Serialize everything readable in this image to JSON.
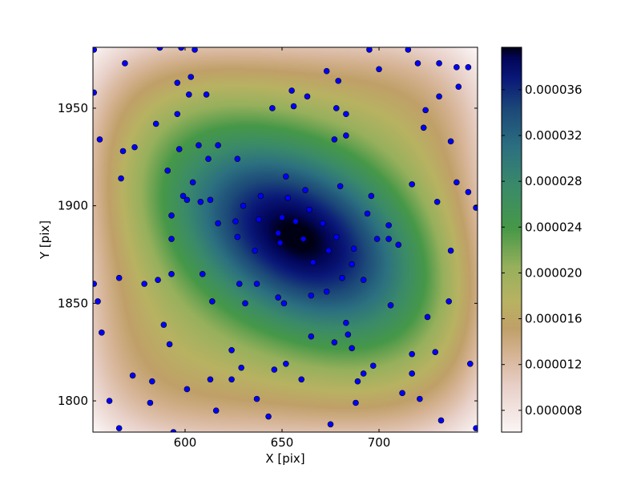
{
  "chart_data": {
    "type": "heatmap",
    "title": "",
    "xlabel": "X [pix]",
    "ylabel": "Y [pix]",
    "xlim": [
      552.5,
      750.8
    ],
    "ylim": [
      1784.0,
      1981.2
    ],
    "xticks": [
      "600",
      "650",
      "700"
    ],
    "yticks": [
      "1800",
      "1850",
      "1900",
      "1950"
    ],
    "grid": false,
    "colormap": "gist_earth_r",
    "colorbar": {
      "range": [
        6.1e-06,
        3.97e-05
      ],
      "ticks": [
        "0.000008",
        "0.000012",
        "0.000016",
        "0.000020",
        "0.000024",
        "0.000028",
        "0.000032",
        "0.000036"
      ],
      "location": "right"
    },
    "peak": {
      "x": 658,
      "y": 1884
    },
    "scatter": {
      "color": "#0000ff",
      "edge_color": "#000000",
      "points": [
        [
          553,
          1980
        ],
        [
          587,
          1981
        ],
        [
          598,
          1981
        ],
        [
          605,
          1980
        ],
        [
          569,
          1973
        ],
        [
          603,
          1966
        ],
        [
          596,
          1963
        ],
        [
          602,
          1957
        ],
        [
          611,
          1957
        ],
        [
          553,
          1958
        ],
        [
          645,
          1950
        ],
        [
          596,
          1947
        ],
        [
          585,
          1942
        ],
        [
          556,
          1934
        ],
        [
          568,
          1928
        ],
        [
          574,
          1930
        ],
        [
          597,
          1929
        ],
        [
          607,
          1931
        ],
        [
          617,
          1931
        ],
        [
          612,
          1924
        ],
        [
          627,
          1924
        ],
        [
          591,
          1918
        ],
        [
          567,
          1914
        ],
        [
          604,
          1912
        ],
        [
          652,
          1915
        ],
        [
          599,
          1905
        ],
        [
          601,
          1903
        ],
        [
          608,
          1902
        ],
        [
          613,
          1903
        ],
        [
          639,
          1905
        ],
        [
          630,
          1900
        ],
        [
          653,
          1904
        ],
        [
          593,
          1895
        ],
        [
          617,
          1891
        ],
        [
          626,
          1892
        ],
        [
          638,
          1893
        ],
        [
          650,
          1894
        ],
        [
          648,
          1886
        ],
        [
          593,
          1883
        ],
        [
          627,
          1884
        ],
        [
          695,
          1980
        ],
        [
          715,
          1980
        ],
        [
          720,
          1973
        ],
        [
          731,
          1973
        ],
        [
          740,
          1971
        ],
        [
          746,
          1971
        ],
        [
          673,
          1969
        ],
        [
          700,
          1970
        ],
        [
          679,
          1964
        ],
        [
          741,
          1961
        ],
        [
          655,
          1959
        ],
        [
          663,
          1956
        ],
        [
          731,
          1956
        ],
        [
          656,
          1951
        ],
        [
          678,
          1950
        ],
        [
          683,
          1947
        ],
        [
          724,
          1949
        ],
        [
          723,
          1940
        ],
        [
          683,
          1936
        ],
        [
          677,
          1934
        ],
        [
          737,
          1933
        ],
        [
          680,
          1910
        ],
        [
          717,
          1911
        ],
        [
          740,
          1912
        ],
        [
          662,
          1908
        ],
        [
          696,
          1905
        ],
        [
          746,
          1907
        ],
        [
          730,
          1902
        ],
        [
          750,
          1899
        ],
        [
          664,
          1898
        ],
        [
          657,
          1892
        ],
        [
          671,
          1891
        ],
        [
          694,
          1896
        ],
        [
          705,
          1890
        ],
        [
          678,
          1884
        ],
        [
          699,
          1883
        ],
        [
          705,
          1883
        ],
        [
          661,
          1883
        ],
        [
          649,
          1881
        ],
        [
          636,
          1877
        ],
        [
          553,
          1860
        ],
        [
          566,
          1863
        ],
        [
          579,
          1860
        ],
        [
          586,
          1862
        ],
        [
          593,
          1865
        ],
        [
          609,
          1865
        ],
        [
          628,
          1860
        ],
        [
          637,
          1860
        ],
        [
          555,
          1851
        ],
        [
          614,
          1851
        ],
        [
          631,
          1850
        ],
        [
          648,
          1853
        ],
        [
          651,
          1850
        ],
        [
          589,
          1839
        ],
        [
          557,
          1835
        ],
        [
          592,
          1829
        ],
        [
          624,
          1826
        ],
        [
          652,
          1819
        ],
        [
          573,
          1813
        ],
        [
          583,
          1810
        ],
        [
          613,
          1811
        ],
        [
          624,
          1811
        ],
        [
          629,
          1817
        ],
        [
          646,
          1816
        ],
        [
          561,
          1800
        ],
        [
          582,
          1799
        ],
        [
          601,
          1806
        ],
        [
          637,
          1801
        ],
        [
          616,
          1795
        ],
        [
          643,
          1792
        ],
        [
          566,
          1786
        ],
        [
          594,
          1784
        ],
        [
          710,
          1880
        ],
        [
          737,
          1877
        ],
        [
          674,
          1877
        ],
        [
          687,
          1878
        ],
        [
          666,
          1871
        ],
        [
          686,
          1870
        ],
        [
          681,
          1863
        ],
        [
          692,
          1862
        ],
        [
          665,
          1854
        ],
        [
          673,
          1856
        ],
        [
          706,
          1849
        ],
        [
          736,
          1851
        ],
        [
          725,
          1843
        ],
        [
          683,
          1840
        ],
        [
          684,
          1834
        ],
        [
          665,
          1833
        ],
        [
          677,
          1830
        ],
        [
          686,
          1827
        ],
        [
          717,
          1824
        ],
        [
          729,
          1825
        ],
        [
          747,
          1819
        ],
        [
          697,
          1818
        ],
        [
          692,
          1814
        ],
        [
          660,
          1811
        ],
        [
          717,
          1814
        ],
        [
          689,
          1810
        ],
        [
          712,
          1804
        ],
        [
          721,
          1801
        ],
        [
          688,
          1799
        ],
        [
          732,
          1790
        ],
        [
          675,
          1788
        ],
        [
          750,
          1786
        ]
      ]
    }
  }
}
